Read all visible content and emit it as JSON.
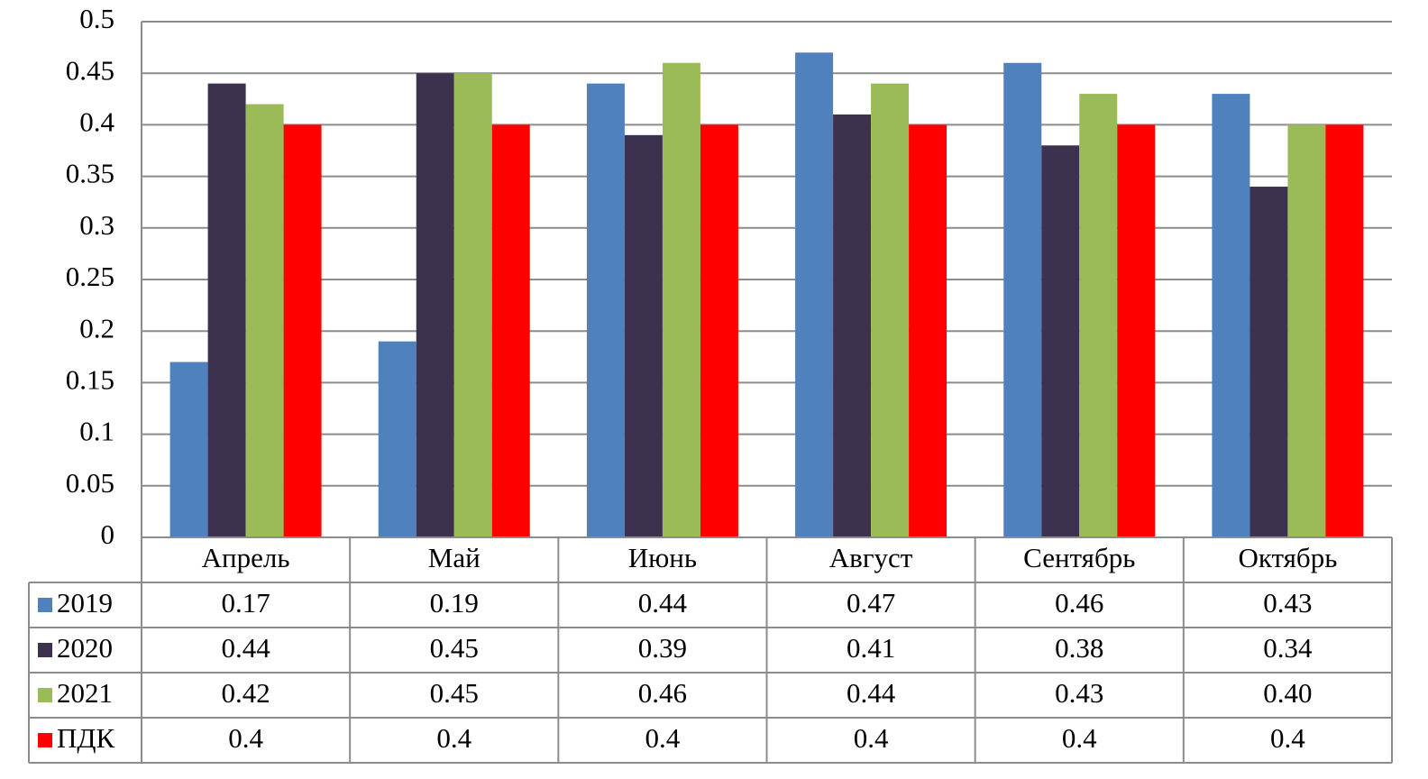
{
  "chart_data": {
    "type": "bar",
    "categories": [
      "Апрель",
      "Май",
      "Июнь",
      "Август",
      "Сентябрь",
      "Октябрь"
    ],
    "series": [
      {
        "name": "2019",
        "color": "#4F81BD",
        "values": [
          0.17,
          0.19,
          0.44,
          0.47,
          0.46,
          0.43
        ],
        "labels": [
          "0.17",
          "0.19",
          "0.44",
          "0.47",
          "0.46",
          "0.43"
        ]
      },
      {
        "name": "2020",
        "color": "#3D3150",
        "values": [
          0.44,
          0.45,
          0.39,
          0.41,
          0.38,
          0.34
        ],
        "labels": [
          "0.44",
          "0.45",
          "0.39",
          "0.41",
          "0.38",
          "0.34"
        ]
      },
      {
        "name": "2021",
        "color": "#9BBB59",
        "values": [
          0.42,
          0.45,
          0.46,
          0.44,
          0.43,
          0.4
        ],
        "labels": [
          "0.42",
          "0.45",
          "0.46",
          "0.44",
          "0.43",
          "0.40"
        ]
      },
      {
        "name": "ПДК",
        "color": "#FF0000",
        "values": [
          0.4,
          0.4,
          0.4,
          0.4,
          0.4,
          0.4
        ],
        "labels": [
          "0.4",
          "0.4",
          "0.4",
          "0.4",
          "0.4",
          "0.4"
        ]
      }
    ],
    "yticks": [
      "0",
      "0.05",
      "0.1",
      "0.15",
      "0.2",
      "0.25",
      "0.3",
      "0.35",
      "0.4",
      "0.45",
      "0.5"
    ],
    "ylim": [
      0,
      0.5
    ],
    "grid": true,
    "legend": "data-table-left"
  }
}
